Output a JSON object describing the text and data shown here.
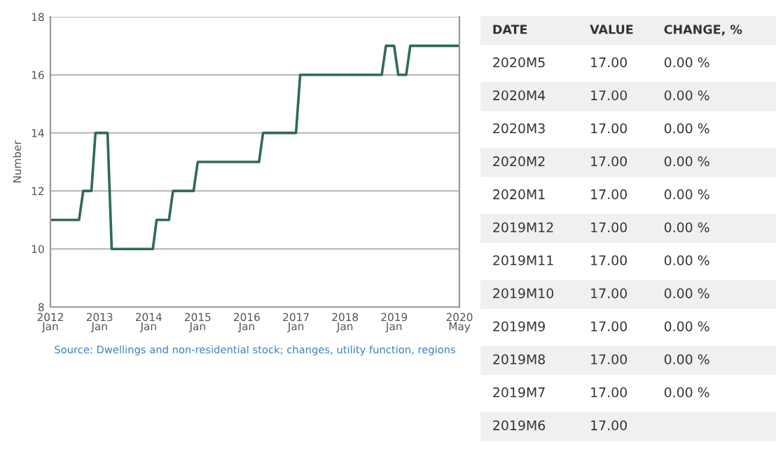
{
  "chart_data": [
    {
      "type": "line",
      "ylabel": "Number",
      "x": [
        "2012-01",
        "2012-08",
        "2012-09",
        "2012-11",
        "2012-12",
        "2013-03",
        "2013-04",
        "2014-02",
        "2014-03",
        "2014-06",
        "2014-07",
        "2014-12",
        "2015-01",
        "2016-04",
        "2016-05",
        "2017-01",
        "2017-02",
        "2018-10",
        "2018-11",
        "2019-01",
        "2019-02",
        "2019-04",
        "2019-05",
        "2020-05"
      ],
      "series": [
        {
          "color": "#2f6b52",
          "values": [
            11,
            11,
            12,
            12,
            14,
            14,
            10,
            10,
            11,
            11,
            12,
            12,
            13,
            13,
            14,
            14,
            16,
            16,
            17,
            17,
            16,
            16,
            17,
            17
          ]
        }
      ],
      "xlim": [
        "2012-01",
        "2020-05"
      ],
      "xticks": [
        {
          "value": "2012-01",
          "label": "2012\nJan"
        },
        {
          "value": "2013-01",
          "label": "2013\nJan"
        },
        {
          "value": "2014-01",
          "label": "2014\nJan"
        },
        {
          "value": "2015-01",
          "label": "2015\nJan"
        },
        {
          "value": "2016-01",
          "label": "2016\nJan"
        },
        {
          "value": "2017-01",
          "label": "2017\nJan"
        },
        {
          "value": "2018-01",
          "label": "2018\nJan"
        },
        {
          "value": "2019-01",
          "label": "2019\nJan"
        },
        {
          "value": "2020-05",
          "label": "2020\nMay"
        }
      ],
      "ylim": [
        8,
        18
      ],
      "yticks": [
        8,
        10,
        12,
        14,
        16,
        18
      ],
      "grid": "y",
      "legend": false,
      "marker": "none",
      "line_style": "solid",
      "annotations": [
        "Source: Dwellings and non-residential stock; changes, utility function, regions"
      ]
    },
    {
      "type": "other",
      "xlabel": "DATE",
      "categories": [
        "2020M5",
        "2020M4",
        "2020M3",
        "2020M2",
        "2020M1",
        "2019M12",
        "2019M11",
        "2019M10",
        "2019M9",
        "2019M8",
        "2019M7",
        "2019M6"
      ],
      "series": [
        {
          "name": "VALUE",
          "values": [
            17,
            17,
            17,
            17,
            17,
            17,
            17,
            17,
            17,
            17,
            17,
            17
          ],
          "value_labels": [
            "17.00",
            "17.00",
            "17.00",
            "17.00",
            "17.00",
            "17.00",
            "17.00",
            "17.00",
            "17.00",
            "17.00",
            "17.00",
            "17.00"
          ]
        },
        {
          "name": "CHANGE, %",
          "values": [
            0,
            0,
            0,
            0,
            0,
            0,
            0,
            0,
            0,
            0,
            0,
            null
          ],
          "value_labels": [
            "0.00 %",
            "0.00 %",
            "0.00 %",
            "0.00 %",
            "0.00 %",
            "0.00 %",
            "0.00 %",
            "0.00 %",
            "0.00 %",
            "0.00 %",
            "0.00 %",
            null
          ]
        }
      ]
    }
  ]
}
